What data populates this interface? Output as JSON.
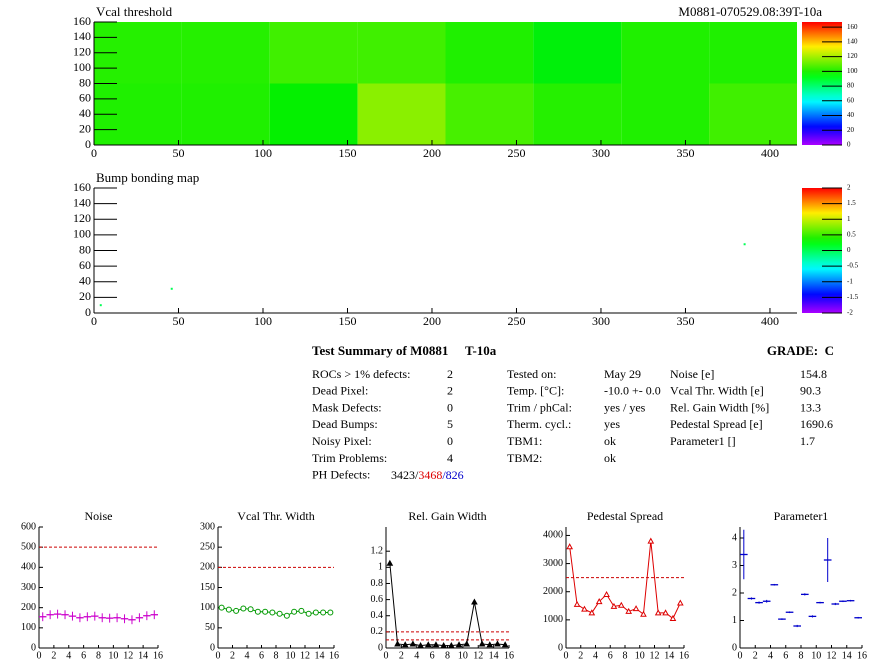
{
  "chart_data": [
    {
      "type": "heatmap",
      "title": "Vcal threshold",
      "subtitle": "M0881-070529.08:39T-10a",
      "xbins": [
        0,
        52,
        104,
        156,
        208,
        260,
        312,
        364,
        416
      ],
      "ybins": [
        0,
        80,
        160
      ],
      "values": [
        [
          100,
          100,
          96,
          116,
          106,
          101,
          100,
          105
        ],
        [
          101,
          101,
          105,
          105,
          100,
          94,
          100,
          100
        ]
      ],
      "xlim": [
        0,
        416
      ],
      "ylim": [
        0,
        160
      ],
      "xticks": [
        0,
        50,
        100,
        150,
        200,
        250,
        300,
        350,
        400
      ],
      "yticks": [
        0,
        20,
        40,
        60,
        80,
        100,
        120,
        140,
        160
      ],
      "zlim": [
        0,
        167
      ],
      "zticks": [
        0,
        20,
        40,
        60,
        80,
        100,
        120,
        140,
        160
      ]
    },
    {
      "type": "pixelmap",
      "title": "Bump bonding map",
      "x": [
        46,
        385,
        4
      ],
      "y": [
        31,
        88,
        10
      ],
      "values": [
        0,
        0,
        0
      ],
      "xlim": [
        0,
        416
      ],
      "ylim": [
        0,
        160
      ],
      "xticks": [
        0,
        50,
        100,
        150,
        200,
        250,
        300,
        350,
        400
      ],
      "yticks": [
        0,
        20,
        40,
        60,
        80,
        100,
        120,
        140,
        160
      ],
      "zlim": [
        -2,
        2
      ],
      "zticks": [
        -2,
        -1.5,
        -1,
        -0.5,
        0,
        0.5,
        1,
        1.5,
        2
      ]
    },
    {
      "type": "line",
      "title": "Noise",
      "color": "#cc00cc",
      "marker": "cross",
      "line": false,
      "x": [
        0.5,
        1.5,
        2.5,
        3.5,
        4.5,
        5.5,
        6.5,
        7.5,
        8.5,
        9.5,
        10.5,
        11.5,
        12.5,
        13.5,
        14.5,
        15.5
      ],
      "values": [
        155,
        165,
        168,
        165,
        158,
        150,
        155,
        158,
        150,
        148,
        150,
        145,
        140,
        150,
        160,
        165
      ],
      "errors": [
        22,
        22,
        22,
        22,
        22,
        22,
        22,
        22,
        22,
        22,
        22,
        22,
        22,
        22,
        22,
        22
      ],
      "hlines": [
        500
      ],
      "xlim": [
        0,
        16
      ],
      "xticks": [
        0,
        2,
        4,
        6,
        8,
        10,
        12,
        14,
        16
      ],
      "ylim": [
        0,
        600
      ],
      "yticks": [
        0,
        100,
        200,
        300,
        400,
        500,
        600
      ]
    },
    {
      "type": "line",
      "title": "Vcal Thr. Width",
      "color": "#009900",
      "marker": "circle",
      "line": true,
      "x": [
        0.5,
        1.5,
        2.5,
        3.5,
        4.5,
        5.5,
        6.5,
        7.5,
        8.5,
        9.5,
        10.5,
        11.5,
        12.5,
        13.5,
        14.5,
        15.5
      ],
      "values": [
        100,
        95,
        92,
        98,
        96,
        90,
        90,
        88,
        85,
        80,
        90,
        92,
        85,
        88,
        88,
        88
      ],
      "hlines": [
        200
      ],
      "xlim": [
        0,
        16
      ],
      "xticks": [
        0,
        2,
        4,
        6,
        8,
        10,
        12,
        14,
        16
      ],
      "ylim": [
        0,
        300
      ],
      "yticks": [
        0,
        50,
        100,
        150,
        200,
        250,
        300
      ]
    },
    {
      "type": "line",
      "title": "Rel. Gain Width",
      "color": "#000000",
      "marker": "triangle",
      "line": true,
      "x": [
        0.5,
        1.5,
        2.5,
        3.5,
        4.5,
        5.5,
        6.5,
        7.5,
        8.5,
        9.5,
        10.5,
        11.5,
        12.5,
        13.5,
        14.5,
        15.5
      ],
      "values": [
        1.05,
        0.05,
        0.04,
        0.05,
        0.03,
        0.04,
        0.04,
        0.03,
        0.03,
        0.04,
        0.05,
        0.57,
        0.05,
        0.04,
        0.05,
        0.04
      ],
      "hlines": [
        0.2,
        0.1
      ],
      "xlim": [
        0,
        16
      ],
      "xticks": [
        0,
        2,
        4,
        6,
        8,
        10,
        12,
        14,
        16
      ],
      "ylim": [
        0,
        1.5
      ],
      "yticks": [
        0,
        0.2,
        0.4,
        0.6,
        0.8,
        1,
        1.2
      ]
    },
    {
      "type": "line",
      "title": "Pedestal Spread",
      "color": "#dd0000",
      "marker": "triangle-open",
      "line": true,
      "x": [
        0.5,
        1.5,
        2.5,
        3.5,
        4.5,
        5.5,
        6.5,
        7.5,
        8.5,
        9.5,
        10.5,
        11.5,
        12.5,
        13.5,
        14.5,
        15.5
      ],
      "values": [
        3600,
        1550,
        1380,
        1250,
        1650,
        1900,
        1480,
        1520,
        1300,
        1400,
        1200,
        3800,
        1250,
        1250,
        1050,
        1600
      ],
      "hlines": [
        2500
      ],
      "xlim": [
        0,
        16
      ],
      "xticks": [
        0,
        2,
        4,
        6,
        8,
        10,
        12,
        14,
        16
      ],
      "ylim": [
        0,
        4300
      ],
      "yticks": [
        0,
        1000,
        2000,
        3000,
        4000
      ]
    },
    {
      "type": "line",
      "title": "Parameter1",
      "color": "#0000cc",
      "marker": "cross",
      "line": false,
      "x": [
        0.5,
        1.5,
        2.5,
        3.5,
        4.5,
        5.5,
        6.5,
        7.5,
        8.5,
        9.5,
        10.5,
        11.5,
        12.5,
        13.5,
        14.5,
        15.5
      ],
      "values": [
        3.4,
        1.8,
        1.65,
        1.7,
        2.3,
        1.05,
        1.3,
        0.8,
        1.95,
        1.15,
        1.65,
        3.2,
        1.6,
        1.7,
        1.72,
        1.1
      ],
      "errors": [
        0.9,
        0.04,
        0.04,
        0.05,
        0.03,
        0.03,
        0.03,
        0.04,
        0.04,
        0.04,
        0.03,
        0.8,
        0.04,
        0.03,
        0.03,
        0.03
      ],
      "xlim": [
        0,
        16
      ],
      "xticks": [
        0,
        2,
        4,
        6,
        8,
        10,
        12,
        14,
        16
      ],
      "ylim": [
        0,
        4.4
      ],
      "yticks": [
        0,
        1,
        2,
        3,
        4
      ]
    }
  ],
  "summary": {
    "title": "Test Summary of M0881",
    "module": "T-10a",
    "grade": "GRADE:  C",
    "left": [
      [
        "ROCs > 1% defects:",
        "2"
      ],
      [
        "Dead Pixel:",
        "2"
      ],
      [
        "Mask Defects:",
        "0"
      ],
      [
        "Dead Bumps:",
        "5"
      ],
      [
        "Noisy Pixel:",
        "0"
      ],
      [
        "Trim Problems:",
        "4"
      ]
    ],
    "ph_label": "PH Defects:",
    "ph_parts": [
      {
        "text": "3423/",
        "color": "#000000"
      },
      {
        "text": "3468",
        "color": "#dd0000"
      },
      {
        "text": "/826",
        "color": "#0000cc"
      }
    ],
    "middle": [
      [
        "Tested on:",
        "May 29"
      ],
      [
        "Temp. [°C]:",
        "-10.0 +- 0.0"
      ],
      [
        "Trim / phCal:",
        "yes / yes"
      ],
      [
        "Therm. cycl.:",
        "yes"
      ],
      [
        "TBM1:",
        "ok"
      ],
      [
        "TBM2:",
        "ok"
      ]
    ],
    "right": [
      [
        "Noise [e]",
        "154.8"
      ],
      [
        "Vcal Thr. Width [e]",
        "90.3"
      ],
      [
        "Rel. Gain Width [%]",
        "13.3"
      ],
      [
        "Pedestal Spread [e]",
        "1690.6"
      ],
      [
        "Parameter1 []",
        "1.7"
      ]
    ]
  }
}
